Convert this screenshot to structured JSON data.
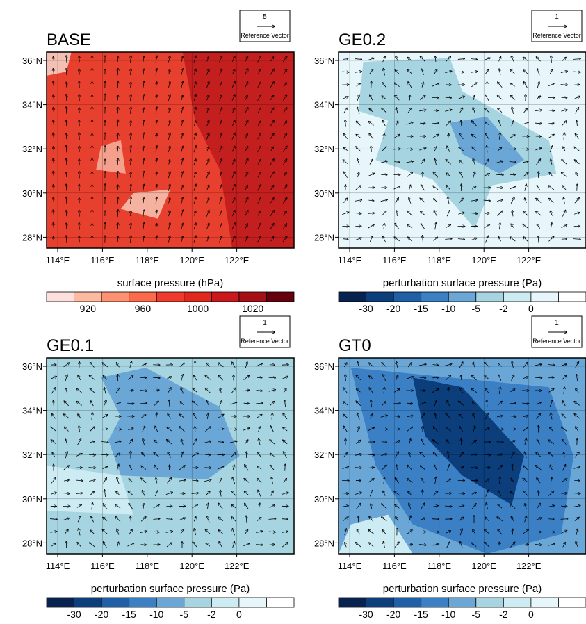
{
  "panels": [
    {
      "title": "BASE",
      "reference_vector": {
        "magnitude": 5,
        "label": "Reference Vector"
      },
      "xticks": [
        {
          "value": 114,
          "label": "114°E"
        },
        {
          "value": 116,
          "label": "116°E"
        },
        {
          "value": 118,
          "label": "118°E"
        },
        {
          "value": 120,
          "label": "120°E"
        },
        {
          "value": 122,
          "label": "122°E"
        }
      ],
      "yticks": [
        {
          "value": 36,
          "label": "36°N"
        },
        {
          "value": 34,
          "label": "34°N"
        },
        {
          "value": 32,
          "label": "32°N"
        },
        {
          "value": 30,
          "label": "30°N"
        },
        {
          "value": 28,
          "label": "28°N"
        }
      ],
      "colorbar": {
        "title": "surface pressure (hPa)",
        "ticks": [
          920,
          960,
          1000,
          1020
        ],
        "colors": [
          "#fde0dd",
          "#fcbba1",
          "#fc9272",
          "#fb6a4a",
          "#ef3b2c",
          "#e0281f",
          "#cb181d",
          "#a50f15",
          "#67000d"
        ]
      }
    },
    {
      "title": "GE0.2",
      "reference_vector": {
        "magnitude": 1,
        "label": "Reference Vector"
      },
      "xticks": [
        {
          "value": 114,
          "label": "114°E"
        },
        {
          "value": 116,
          "label": "116°E"
        },
        {
          "value": 118,
          "label": "118°E"
        },
        {
          "value": 120,
          "label": "120°E"
        },
        {
          "value": 122,
          "label": "122°E"
        }
      ],
      "yticks": [
        {
          "value": 36,
          "label": "36°N"
        },
        {
          "value": 34,
          "label": "34°N"
        },
        {
          "value": 32,
          "label": "32°N"
        },
        {
          "value": 30,
          "label": "30°N"
        },
        {
          "value": 28,
          "label": "28°N"
        }
      ],
      "colorbar": {
        "title": "perturbation surface pressure (Pa)",
        "ticks": [
          -30,
          -20,
          -15,
          -10,
          -5,
          -2,
          0
        ],
        "colors": [
          "#08224f",
          "#0b3e7a",
          "#1f5fa8",
          "#3b7fc4",
          "#6aa7d6",
          "#a6d4e0",
          "#cdebf3",
          "#e6f6fb",
          "#ffffff"
        ]
      }
    },
    {
      "title": "GE0.1",
      "reference_vector": {
        "magnitude": 1,
        "label": "Reference Vector"
      },
      "xticks": [
        {
          "value": 114,
          "label": "114°E"
        },
        {
          "value": 116,
          "label": "116°E"
        },
        {
          "value": 118,
          "label": "118°E"
        },
        {
          "value": 120,
          "label": "120°E"
        },
        {
          "value": 122,
          "label": "122°E"
        }
      ],
      "yticks": [
        {
          "value": 36,
          "label": "36°N"
        },
        {
          "value": 34,
          "label": "34°N"
        },
        {
          "value": 32,
          "label": "32°N"
        },
        {
          "value": 30,
          "label": "30°N"
        },
        {
          "value": 28,
          "label": "28°N"
        }
      ],
      "colorbar": {
        "title": "perturbation surface pressure (Pa)",
        "ticks": [
          -30,
          -20,
          -15,
          -10,
          -5,
          -2,
          0
        ],
        "colors": [
          "#08224f",
          "#0b3e7a",
          "#1f5fa8",
          "#3b7fc4",
          "#6aa7d6",
          "#a6d4e0",
          "#cdebf3",
          "#e6f6fb",
          "#ffffff"
        ]
      }
    },
    {
      "title": "GT0",
      "reference_vector": {
        "magnitude": 1,
        "label": "Reference Vector"
      },
      "xticks": [
        {
          "value": 114,
          "label": "114°E"
        },
        {
          "value": 116,
          "label": "116°E"
        },
        {
          "value": 118,
          "label": "118°E"
        },
        {
          "value": 120,
          "label": "120°E"
        },
        {
          "value": 122,
          "label": "122°E"
        }
      ],
      "yticks": [
        {
          "value": 36,
          "label": "36°N"
        },
        {
          "value": 34,
          "label": "34°N"
        },
        {
          "value": 32,
          "label": "32°N"
        },
        {
          "value": 30,
          "label": "30°N"
        },
        {
          "value": 28,
          "label": "28°N"
        }
      ],
      "colorbar": {
        "title": "perturbation surface pressure (Pa)",
        "ticks": [
          -30,
          -20,
          -15,
          -10,
          -5,
          -2,
          0
        ],
        "colors": [
          "#08224f",
          "#0b3e7a",
          "#1f5fa8",
          "#3b7fc4",
          "#6aa7d6",
          "#a6d4e0",
          "#cdebf3",
          "#e6f6fb",
          "#ffffff"
        ]
      }
    }
  ]
}
